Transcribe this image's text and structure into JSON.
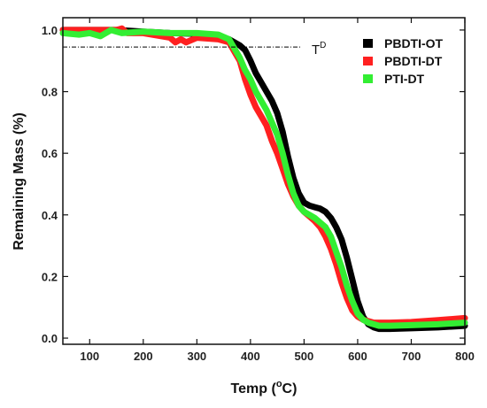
{
  "chart_data": {
    "type": "line",
    "xlabel": "Temp (",
    "xlabel_sup": "o",
    "xlabel_end": "C)",
    "ylabel": "Remaining Mass (%)",
    "xlim": [
      50,
      800
    ],
    "ylim": [
      -0.02,
      1.04
    ],
    "xticks": [
      100,
      200,
      300,
      400,
      500,
      600,
      700,
      800
    ],
    "yticks": [
      0.0,
      0.2,
      0.4,
      0.6,
      0.8,
      1.0
    ],
    "ytick_labels": [
      "0.0",
      "0.2",
      "0.4",
      "0.6",
      "0.8",
      "1.0"
    ],
    "legend_position": "top-right",
    "series": [
      {
        "name": "PBDTI-OT",
        "color": "#000000",
        "x": [
          50,
          100,
          150,
          200,
          250,
          300,
          340,
          360,
          380,
          390,
          400,
          410,
          420,
          430,
          440,
          450,
          460,
          470,
          480,
          490,
          500,
          510,
          520,
          530,
          540,
          550,
          560,
          570,
          580,
          590,
          600,
          610,
          620,
          630,
          640,
          660,
          700,
          750,
          800
        ],
        "y": [
          1.0,
          1.0,
          1.0,
          0.995,
          0.99,
          0.988,
          0.98,
          0.97,
          0.95,
          0.935,
          0.9,
          0.86,
          0.83,
          0.8,
          0.77,
          0.73,
          0.67,
          0.59,
          0.52,
          0.47,
          0.44,
          0.43,
          0.425,
          0.42,
          0.41,
          0.39,
          0.36,
          0.32,
          0.26,
          0.19,
          0.12,
          0.07,
          0.045,
          0.035,
          0.03,
          0.03,
          0.032,
          0.035,
          0.04
        ]
      },
      {
        "name": "PBDTI-DT",
        "color": "#ff2020",
        "x": [
          50,
          100,
          150,
          160,
          170,
          200,
          250,
          260,
          270,
          280,
          300,
          340,
          360,
          370,
          380,
          390,
          400,
          410,
          420,
          430,
          440,
          450,
          460,
          470,
          480,
          490,
          500,
          510,
          520,
          530,
          540,
          550,
          560,
          570,
          580,
          590,
          600,
          610,
          620,
          630,
          640,
          660,
          700,
          750,
          800
        ],
        "y": [
          1.0,
          1.0,
          1.0,
          1.005,
          0.99,
          0.99,
          0.975,
          0.96,
          0.97,
          0.96,
          0.975,
          0.97,
          0.96,
          0.93,
          0.9,
          0.84,
          0.79,
          0.75,
          0.72,
          0.69,
          0.64,
          0.6,
          0.55,
          0.5,
          0.46,
          0.43,
          0.41,
          0.395,
          0.38,
          0.36,
          0.33,
          0.29,
          0.24,
          0.18,
          0.13,
          0.09,
          0.07,
          0.06,
          0.055,
          0.05,
          0.05,
          0.05,
          0.052,
          0.058,
          0.065
        ]
      },
      {
        "name": "PTI-DT",
        "color": "#33ee33",
        "x": [
          50,
          80,
          100,
          120,
          140,
          160,
          200,
          250,
          300,
          340,
          360,
          370,
          380,
          390,
          400,
          410,
          420,
          430,
          440,
          450,
          460,
          470,
          480,
          490,
          500,
          510,
          520,
          530,
          540,
          550,
          560,
          570,
          580,
          590,
          600,
          610,
          620,
          630,
          640,
          660,
          700,
          750,
          800
        ],
        "y": [
          0.99,
          0.985,
          0.99,
          0.98,
          1.0,
          0.99,
          0.995,
          0.99,
          0.99,
          0.985,
          0.97,
          0.94,
          0.91,
          0.87,
          0.84,
          0.8,
          0.77,
          0.74,
          0.7,
          0.66,
          0.6,
          0.53,
          0.47,
          0.43,
          0.41,
          0.4,
          0.39,
          0.375,
          0.36,
          0.33,
          0.28,
          0.23,
          0.17,
          0.12,
          0.08,
          0.06,
          0.05,
          0.045,
          0.04,
          0.04,
          0.042,
          0.045,
          0.05
        ]
      }
    ],
    "annotation": {
      "label": "T",
      "label_sup": "D",
      "y": 0.945,
      "x_start": 50,
      "x_end": 495
    }
  }
}
